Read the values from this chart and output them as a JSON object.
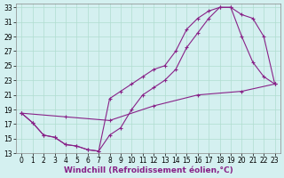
{
  "xlabel": "Windchill (Refroidissement éolien,°C)",
  "bg_color": "#d4f0f0",
  "grid_color": "#b0ddd0",
  "line_color": "#882288",
  "marker": "+",
  "xlim": [
    -0.5,
    23.5
  ],
  "ylim": [
    13,
    33.5
  ],
  "xticks": [
    0,
    1,
    2,
    3,
    4,
    5,
    6,
    7,
    8,
    9,
    10,
    11,
    12,
    13,
    14,
    15,
    16,
    17,
    18,
    19,
    20,
    21,
    22,
    23
  ],
  "yticks": [
    13,
    15,
    17,
    19,
    21,
    23,
    25,
    27,
    29,
    31,
    33
  ],
  "line1_x": [
    0,
    1,
    2,
    3,
    4,
    5,
    6,
    7,
    8,
    9,
    10,
    11,
    12,
    13,
    14,
    15,
    16,
    17,
    18,
    19,
    20,
    21,
    22,
    23
  ],
  "line1_y": [
    18.5,
    17.2,
    15.5,
    15.2,
    14.2,
    14.0,
    13.5,
    13.3,
    20.5,
    21.5,
    22.5,
    23.5,
    24.5,
    25.0,
    27.0,
    30.0,
    31.5,
    32.5,
    33.0,
    33.0,
    32.0,
    31.5,
    29.0,
    22.5
  ],
  "line2_x": [
    0,
    1,
    2,
    3,
    4,
    5,
    6,
    7,
    8,
    9,
    10,
    11,
    12,
    13,
    14,
    15,
    16,
    17,
    18,
    19,
    20,
    21,
    22,
    23
  ],
  "line2_y": [
    18.5,
    17.2,
    15.5,
    15.2,
    14.2,
    14.0,
    13.5,
    13.3,
    15.5,
    16.5,
    19.0,
    21.0,
    22.0,
    23.0,
    24.5,
    27.5,
    29.5,
    31.5,
    33.0,
    33.0,
    29.0,
    25.5,
    23.5,
    22.5
  ],
  "line3_x": [
    0,
    4,
    8,
    12,
    16,
    20,
    23
  ],
  "line3_y": [
    18.5,
    18.0,
    17.5,
    19.5,
    21.0,
    21.5,
    22.5
  ],
  "fontsize_tick": 5.5,
  "fontsize_xlabel": 6.5
}
